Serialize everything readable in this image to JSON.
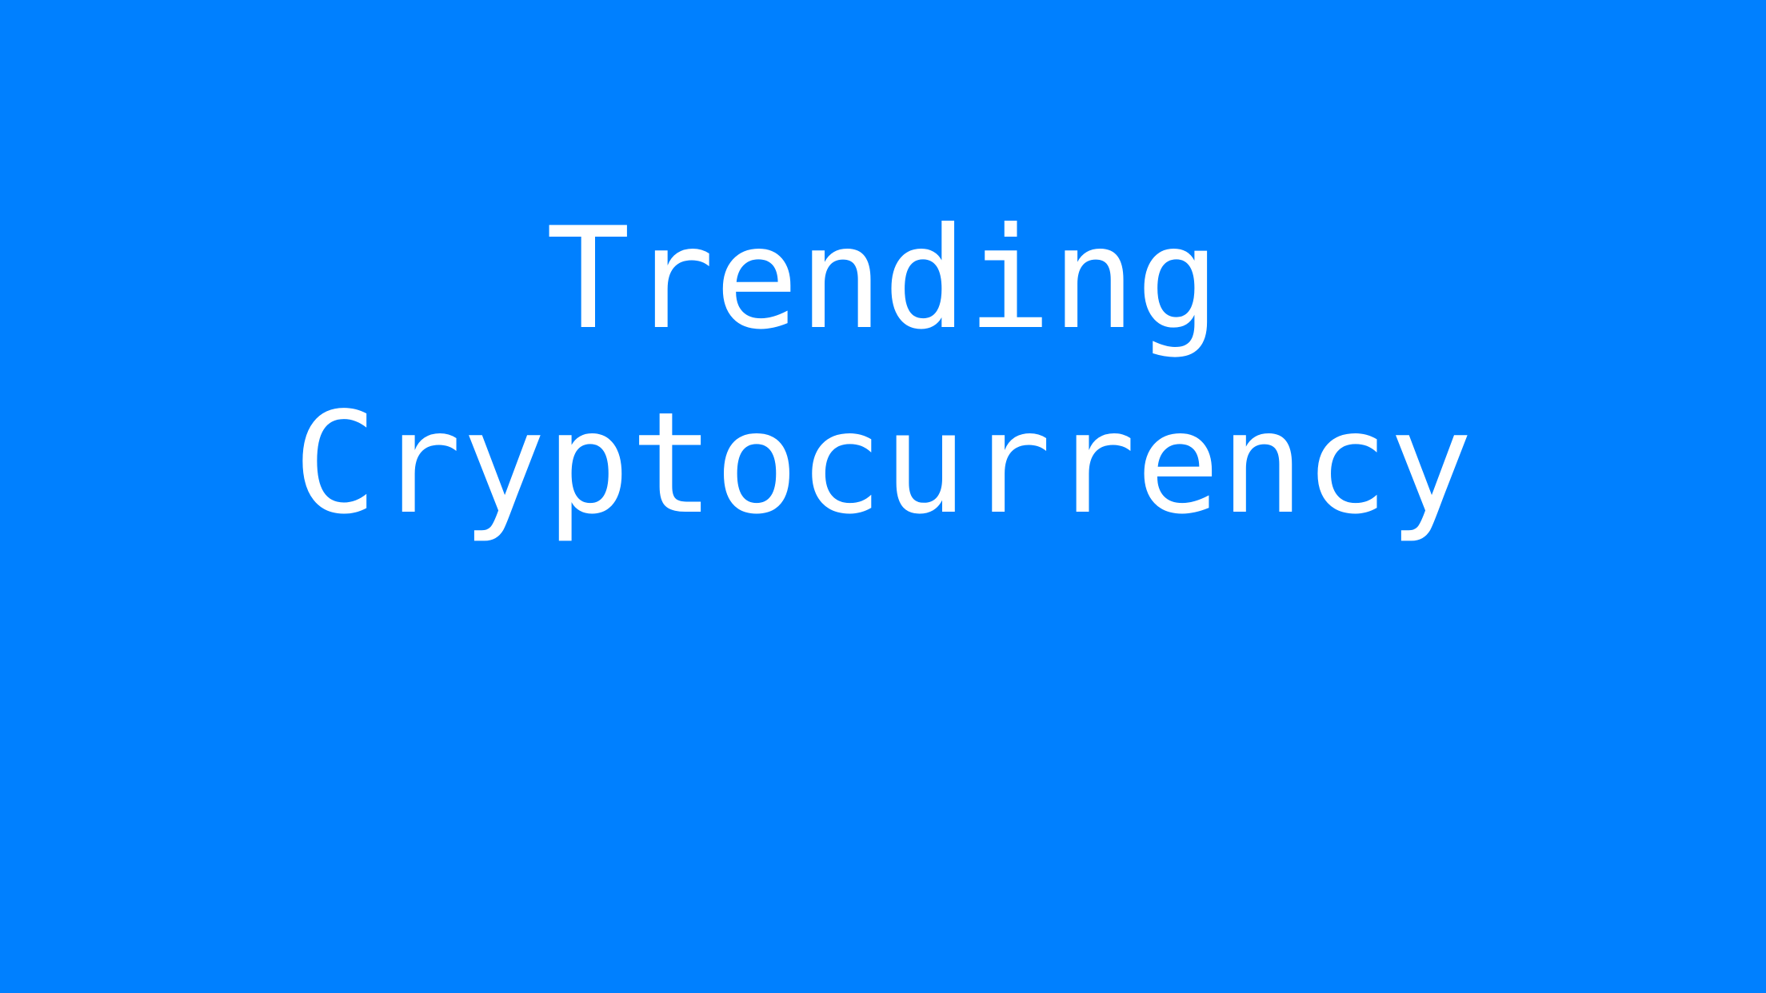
{
  "background_color": "#0080FF",
  "text_color": "#FFFFFF",
  "heading": {
    "line1": "Trending",
    "line2": "Cryptocurrency"
  }
}
